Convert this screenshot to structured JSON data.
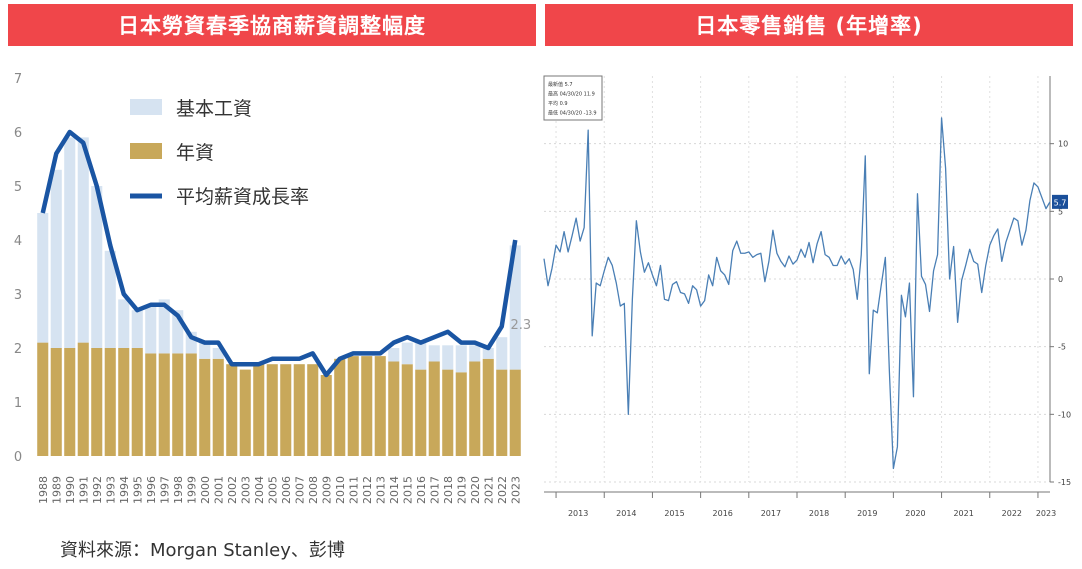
{
  "banners": {
    "left": "日本勞資春季協商薪資調整幅度",
    "right": "日本零售銷售 (年增率)"
  },
  "source": "資料來源：Morgan Stanley、彭博",
  "colors": {
    "banner": "#f0464a",
    "base_wage": "#d6e3f1",
    "bonus": "#c8a85a",
    "avg_line": "#1a55a3",
    "retail_line": "#4a7fb5",
    "badge": "#1a4f9a"
  },
  "chart_data": [
    {
      "type": "bar",
      "stacked": true,
      "title": "日本勞資春季協商薪資調整幅度",
      "categories": [
        "1988",
        "1989",
        "1990",
        "1991",
        "1992",
        "1993",
        "1994",
        "1995",
        "1996",
        "1997",
        "1998",
        "1999",
        "2000",
        "2001",
        "2002",
        "2003",
        "2004",
        "2005",
        "2006",
        "2007",
        "2008",
        "2009",
        "2010",
        "2011",
        "2012",
        "2013",
        "2014",
        "2015",
        "2016",
        "2017",
        "2018",
        "2019",
        "2020",
        "2021",
        "2022",
        "2023"
      ],
      "ylim": [
        0,
        7
      ],
      "yticks": [
        "0",
        "1",
        "2",
        "3",
        "4",
        "5",
        "6",
        "7"
      ],
      "legend_position": "top-left",
      "series": [
        {
          "name": "年資",
          "kind": "bar",
          "values": [
            2.1,
            2.0,
            2.0,
            2.1,
            2.0,
            2.0,
            2.0,
            2.0,
            1.9,
            1.9,
            1.9,
            1.9,
            1.8,
            1.8,
            1.7,
            1.6,
            1.7,
            1.7,
            1.7,
            1.7,
            1.7,
            1.5,
            1.8,
            1.85,
            1.85,
            1.85,
            1.75,
            1.7,
            1.6,
            1.75,
            1.6,
            1.55,
            1.75,
            1.8,
            1.6,
            1.6
          ]
        },
        {
          "name": "基本工資",
          "kind": "bar",
          "values": [
            2.4,
            3.3,
            3.9,
            3.8,
            3.0,
            1.8,
            0.9,
            0.7,
            0.9,
            1.0,
            0.8,
            0.4,
            0.3,
            0.2,
            0.0,
            0.0,
            0.0,
            0.0,
            0.0,
            0.0,
            0.0,
            0.0,
            0.0,
            0.0,
            0.0,
            0.0,
            0.25,
            0.4,
            0.5,
            0.3,
            0.45,
            0.5,
            0.3,
            0.2,
            0.6,
            2.3
          ]
        },
        {
          "name": "平均薪資成長率",
          "kind": "line",
          "values": [
            4.5,
            5.6,
            6.0,
            5.8,
            5.0,
            3.9,
            3.0,
            2.7,
            2.8,
            2.8,
            2.6,
            2.2,
            2.1,
            2.1,
            1.7,
            1.7,
            1.7,
            1.8,
            1.8,
            1.8,
            1.9,
            1.5,
            1.8,
            1.9,
            1.9,
            1.9,
            2.1,
            2.2,
            2.1,
            2.2,
            2.3,
            2.1,
            2.1,
            2.0,
            2.4,
            4.0
          ]
        }
      ],
      "annotation": "2.3"
    },
    {
      "type": "line",
      "title": "日本零售銷售 (年增率)",
      "xlabels": [
        "2013",
        "2014",
        "2015",
        "2016",
        "2017",
        "2018",
        "2019",
        "2020",
        "2021",
        "2022",
        "2023"
      ],
      "ylim": [
        -15,
        15
      ],
      "yticks": [
        "10",
        "5",
        "0",
        "-5",
        "-10",
        "-15"
      ],
      "grid": true,
      "last_value_label": "5.7",
      "legend_box": [
        "最新值 5.7",
        "最高 04/30/20 11.9",
        "平均 0.9",
        "最低 04/30/20 -13.9"
      ],
      "x_start": "2012-10",
      "x_end": "2023-07",
      "series": [
        {
          "name": "零售銷售年增率",
          "values": [
            1.5,
            -0.5,
            0.8,
            2.5,
            2.0,
            3.5,
            2.0,
            3.2,
            4.5,
            2.8,
            3.8,
            11.0,
            -4.2,
            -0.3,
            -0.5,
            0.6,
            1.6,
            1.0,
            -0.3,
            -2.0,
            -1.8,
            -10.0,
            -1.5,
            4.3,
            2.0,
            0.5,
            1.2,
            0.3,
            -0.5,
            1.0,
            -1.5,
            -1.6,
            -0.4,
            -0.2,
            -1.0,
            -1.1,
            -1.8,
            -0.5,
            -0.8,
            -2.0,
            -1.6,
            0.3,
            -0.5,
            1.6,
            0.6,
            0.3,
            -0.4,
            2.1,
            2.8,
            1.9,
            1.9,
            2.0,
            1.6,
            1.8,
            1.9,
            -0.2,
            1.3,
            3.6,
            1.9,
            1.3,
            0.9,
            1.7,
            1.1,
            1.4,
            2.2,
            1.6,
            2.7,
            1.2,
            2.6,
            3.5,
            1.8,
            1.6,
            1.0,
            1.0,
            1.7,
            1.1,
            1.5,
            0.7,
            -1.5,
            1.8,
            9.1,
            -7.0,
            -2.3,
            -2.5,
            -0.4,
            1.6,
            -6.8,
            -14.0,
            -12.4,
            -1.2,
            -2.8,
            -0.3,
            -8.7,
            6.3,
            0.2,
            -0.4,
            -2.4,
            0.6,
            1.8,
            11.9,
            8.2,
            0.0,
            2.4,
            -3.2,
            -0.1,
            1.0,
            2.2,
            1.3,
            1.1,
            -1.0,
            1.0,
            2.5,
            3.2,
            3.7,
            1.3,
            2.7,
            3.6,
            4.5,
            4.3,
            2.5,
            3.6,
            5.8,
            7.1,
            6.8,
            6.0,
            5.2,
            5.7
          ]
        }
      ]
    }
  ]
}
